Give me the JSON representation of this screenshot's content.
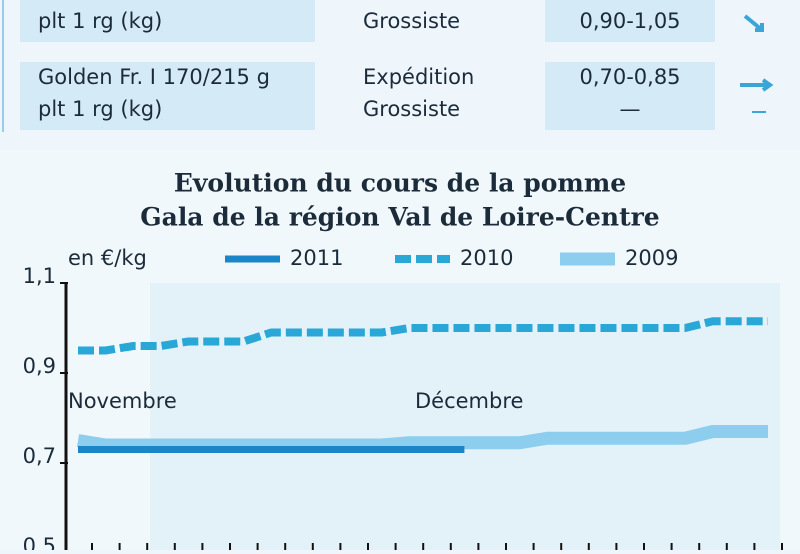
{
  "table": {
    "rows": [
      [
        "plt 1 rg (kg)",
        "Grossiste",
        "0,90-1,05"
      ],
      [
        "Golden Fr. I 170/215 g",
        "plt 1 rg (kg)",
        "Expédition",
        "Grossiste",
        "0,70-0,85",
        "—"
      ]
    ]
  },
  "chart_data": {
    "type": "line",
    "title": [
      "Evolution du cours de la pomme",
      "Gala de la région Val de Loire-Centre"
    ],
    "y_label": "en €/kg",
    "annotations": [
      "Novembre",
      "Décembre"
    ],
    "categories": [
      null,
      null,
      null,
      null,
      null,
      null,
      null,
      null,
      null,
      null,
      null,
      null,
      null,
      null,
      null,
      null,
      null,
      null,
      null,
      null,
      null,
      null,
      null,
      null,
      null,
      null
    ],
    "ylim": [
      0.5,
      1.1
    ],
    "yticks": [
      {
        "value": 1.1,
        "label": "1,1"
      },
      {
        "value": 0.9,
        "label": "0,9"
      },
      {
        "value": 0.7,
        "label": "0,7"
      },
      {
        "value": 0.5,
        "label": "0,5"
      }
    ],
    "series": [
      {
        "name": "2011",
        "color": "#1a86c8",
        "style": "solid",
        "values": [
          0.73,
          0.73,
          0.73,
          0.73,
          0.73,
          0.73,
          0.73,
          0.73,
          0.73,
          0.73,
          0.73,
          0.73,
          0.73,
          0.73,
          0.73,
          null,
          null,
          null,
          null,
          null,
          null,
          null,
          null,
          null,
          null,
          null
        ]
      },
      {
        "name": "2010",
        "color": "#29a7d6",
        "style": "dashed",
        "values": [
          0.95,
          0.95,
          0.96,
          0.96,
          0.97,
          0.97,
          0.97,
          0.99,
          0.99,
          0.99,
          0.99,
          0.99,
          1.0,
          1.0,
          1.0,
          1.0,
          1.0,
          1.0,
          1.0,
          1.0,
          1.0,
          1.0,
          1.0,
          1.015,
          1.015,
          1.015
        ]
      },
      {
        "name": "2009",
        "color": "#8dcdee",
        "style": "thick",
        "values": [
          0.75,
          0.74,
          0.74,
          0.74,
          0.74,
          0.74,
          0.74,
          0.74,
          0.74,
          0.74,
          0.74,
          0.74,
          0.745,
          0.745,
          0.745,
          0.745,
          0.745,
          0.755,
          0.755,
          0.755,
          0.755,
          0.755,
          0.755,
          0.77,
          0.77,
          0.77
        ]
      }
    ]
  }
}
